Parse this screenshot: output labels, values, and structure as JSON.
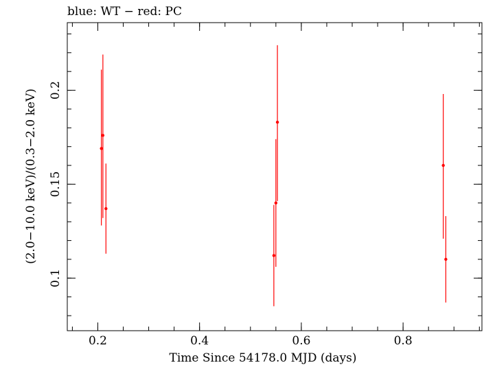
{
  "chart_data": {
    "type": "scatter",
    "title": "blue: WT − red: PC",
    "xlabel": "Time Since 54178.0 MJD (days)",
    "ylabel": "(2.0−10.0 keV)/(0.3−2.0 keV)",
    "xlim": [
      0.14,
      0.955
    ],
    "ylim": [
      0.072,
      0.236
    ],
    "x_ticks": [
      {
        "value": 0.2,
        "label": "0.2"
      },
      {
        "value": 0.4,
        "label": "0.4"
      },
      {
        "value": 0.6,
        "label": "0.6"
      },
      {
        "value": 0.8,
        "label": "0.8"
      }
    ],
    "y_ticks": [
      {
        "value": 0.1,
        "label": "0.1"
      },
      {
        "value": 0.15,
        "label": "0.15"
      },
      {
        "value": 0.2,
        "label": "0.2"
      }
    ],
    "x_minor_step": 0.05,
    "y_minor_step": 0.01,
    "grid": false,
    "series": [
      {
        "color": "#ff0000",
        "points": [
          {
            "x": 0.207,
            "y": 0.169,
            "ylo": 0.128,
            "yhi": 0.211
          },
          {
            "x": 0.21,
            "y": 0.176,
            "ylo": 0.132,
            "yhi": 0.219
          },
          {
            "x": 0.216,
            "y": 0.137,
            "ylo": 0.113,
            "yhi": 0.161
          },
          {
            "x": 0.546,
            "y": 0.112,
            "ylo": 0.085,
            "yhi": 0.139
          },
          {
            "x": 0.55,
            "y": 0.14,
            "ylo": 0.106,
            "yhi": 0.174
          },
          {
            "x": 0.553,
            "y": 0.183,
            "ylo": 0.141,
            "yhi": 0.224
          },
          {
            "x": 0.879,
            "y": 0.16,
            "ylo": 0.121,
            "yhi": 0.198
          },
          {
            "x": 0.884,
            "y": 0.11,
            "ylo": 0.087,
            "yhi": 0.133
          }
        ]
      }
    ]
  }
}
